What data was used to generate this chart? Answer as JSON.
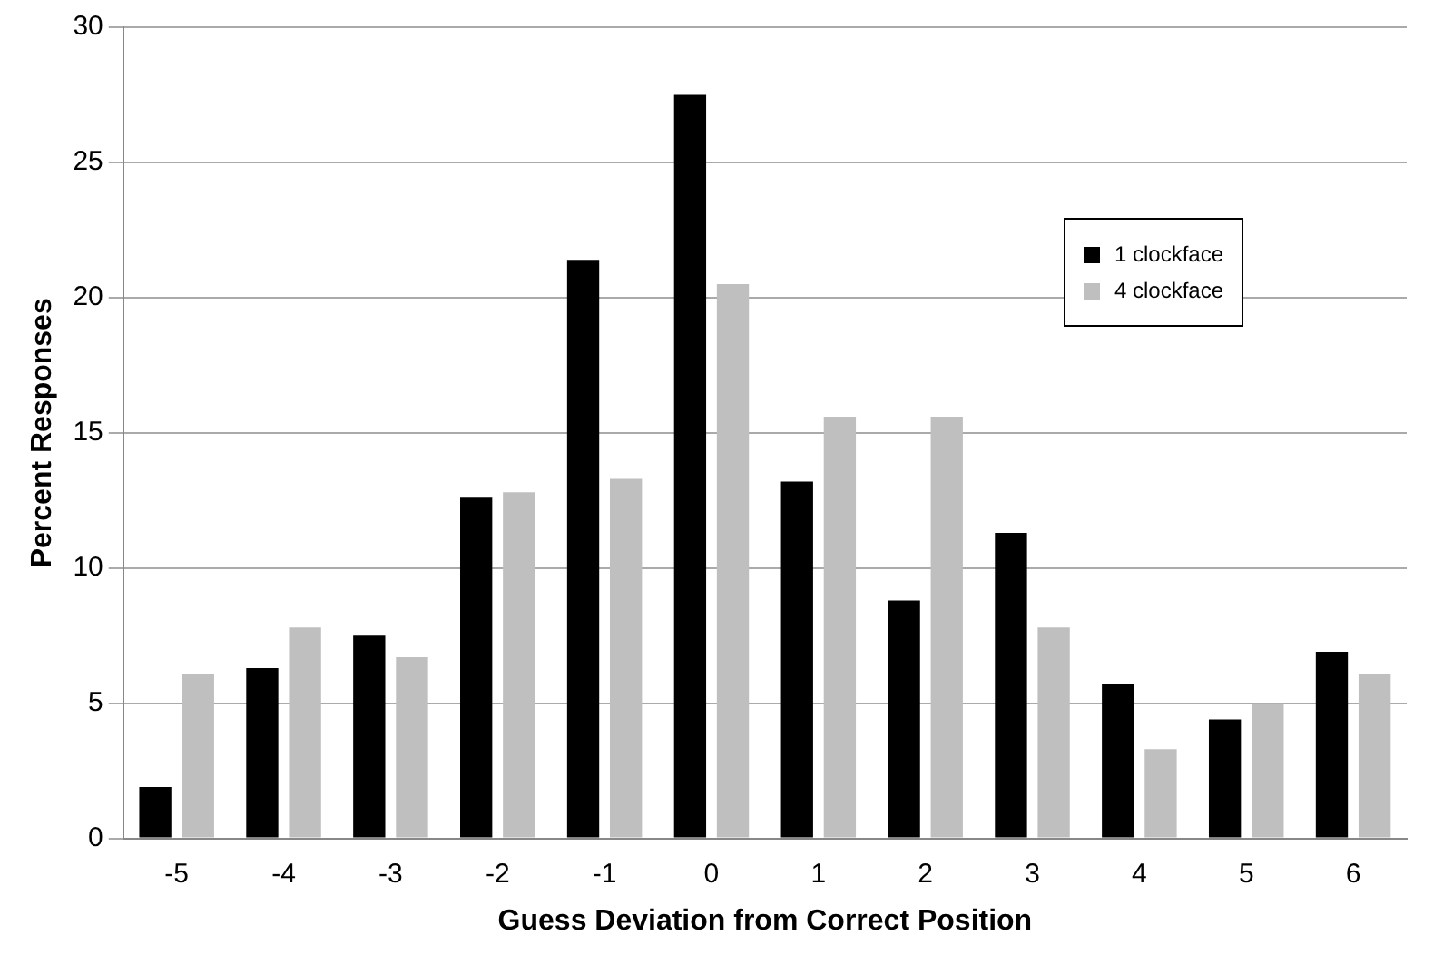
{
  "chart_data": {
    "type": "bar",
    "xlabel": "Guess Deviation from Correct Position",
    "ylabel": "Percent Responses",
    "categories": [
      "-5",
      "-4",
      "-3",
      "-2",
      "-1",
      "0",
      "1",
      "2",
      "3",
      "4",
      "5",
      "6"
    ],
    "series": [
      {
        "name": "1 clockface",
        "color": "#000000",
        "values": [
          1.9,
          6.3,
          7.5,
          12.6,
          21.4,
          27.5,
          13.2,
          8.8,
          11.3,
          5.7,
          4.4,
          6.9
        ]
      },
      {
        "name": "4 clockface",
        "color": "#bfbfbf",
        "values": [
          6.1,
          7.8,
          6.7,
          12.8,
          13.3,
          20.5,
          15.6,
          15.6,
          7.8,
          3.3,
          5.0,
          6.1
        ]
      }
    ],
    "ylim": [
      0,
      30
    ],
    "yticks": [
      0,
      5,
      10,
      15,
      20,
      25,
      30
    ],
    "grid": "y",
    "legend": "top right"
  }
}
